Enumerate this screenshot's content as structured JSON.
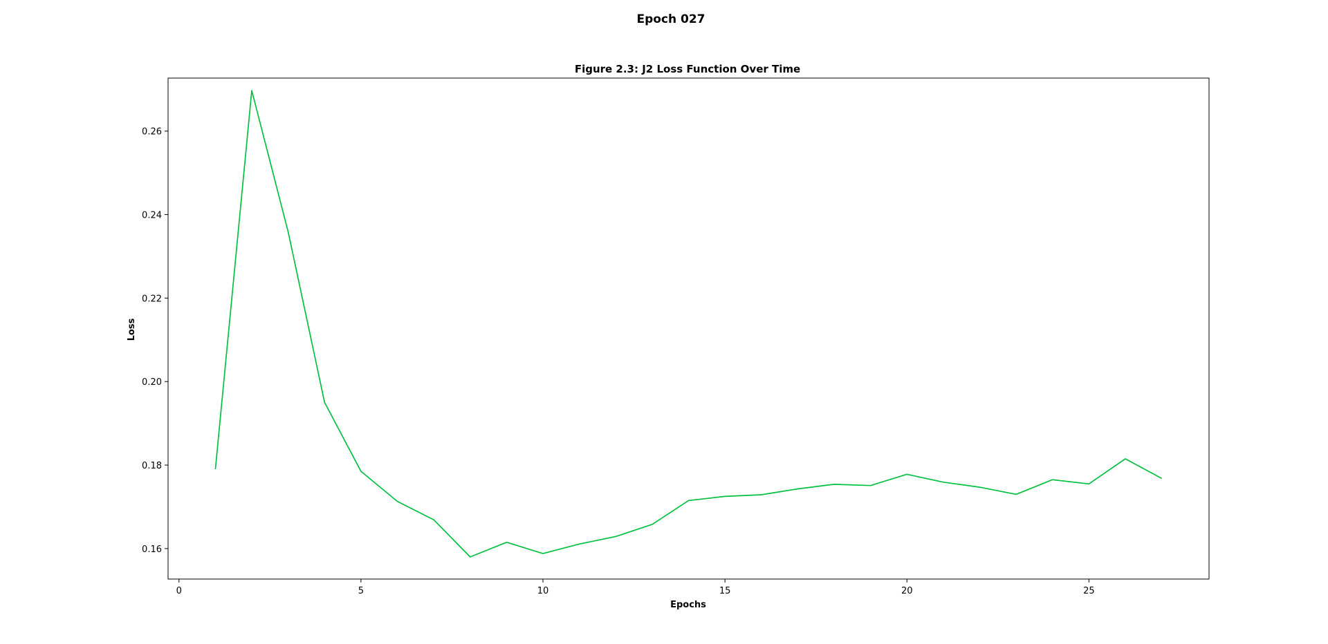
{
  "figure": {
    "suptitle": "Epoch 027"
  },
  "chart_data": {
    "type": "line",
    "title": "Figure 2.3: J2 Loss Function Over Time",
    "xlabel": "Epochs",
    "ylabel": "Loss",
    "xlim": [
      -0.3,
      28.3
    ],
    "ylim": [
      0.1527,
      0.2727
    ],
    "xticks": [
      0,
      5,
      10,
      15,
      20,
      25
    ],
    "xtick_labels": [
      "0",
      "5",
      "10",
      "15",
      "20",
      "25"
    ],
    "yticks": [
      0.16,
      0.18,
      0.2,
      0.22,
      0.24,
      0.26
    ],
    "ytick_labels": [
      "0.16",
      "0.18",
      "0.20",
      "0.22",
      "0.24",
      "0.26"
    ],
    "grid": false,
    "legend": false,
    "series": [
      {
        "color": "#00c040",
        "x": [
          1,
          2,
          3,
          4,
          5,
          6,
          7,
          8,
          9,
          10,
          11,
          12,
          13,
          14,
          15,
          16,
          17,
          18,
          19,
          20,
          21,
          22,
          23,
          24,
          25,
          26,
          27
        ],
        "values": [
          0.179,
          0.2697,
          0.2358,
          0.195,
          0.1785,
          0.1713,
          0.1669,
          0.158,
          0.1615,
          0.1588,
          0.1611,
          0.1629,
          0.1658,
          0.1715,
          0.1725,
          0.1729,
          0.1743,
          0.1754,
          0.1751,
          0.1778,
          0.1759,
          0.1747,
          0.173,
          0.1765,
          0.1755,
          0.1815,
          0.1768
        ]
      }
    ]
  }
}
